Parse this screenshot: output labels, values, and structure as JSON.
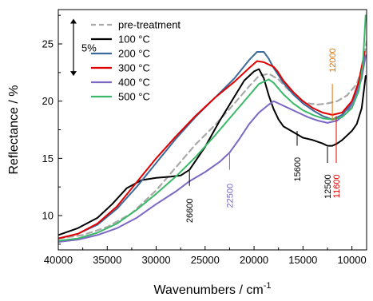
{
  "chart_data": {
    "type": "line",
    "title": "",
    "xlabel": "Wavenumbers / cm",
    "xlabel_sup": "-1",
    "ylabel": "Reflectance / %",
    "xlim": [
      40000,
      8500
    ],
    "ylim": [
      7,
      28
    ],
    "x_reversed": true,
    "x_ticks": [
      {
        "v": 40000,
        "label": "40000"
      },
      {
        "v": 35000,
        "label": "35000"
      },
      {
        "v": 30000,
        "label": "30000"
      },
      {
        "v": 25000,
        "label": "25000"
      },
      {
        "v": 20000,
        "label": "20000"
      },
      {
        "v": 15000,
        "label": "15000"
      },
      {
        "v": 10000,
        "label": "10000"
      }
    ],
    "y_ticks": [
      {
        "v": 10,
        "label": "10"
      },
      {
        "v": 15,
        "label": "15"
      },
      {
        "v": 20,
        "label": "20"
      },
      {
        "v": 25,
        "label": "25"
      }
    ],
    "grid": false,
    "legend_position": "top-left",
    "scale_bar": {
      "label": "5%",
      "y_from": 22.2,
      "y_to": 27.2
    },
    "series": [
      {
        "name": "pre-treatment",
        "color": "#a9a9a9",
        "dashed": true,
        "points": [
          [
            40000,
            8.0
          ],
          [
            37500,
            8.3
          ],
          [
            35000,
            9.0
          ],
          [
            32500,
            10.2
          ],
          [
            30000,
            12.2
          ],
          [
            28000,
            14.2
          ],
          [
            26000,
            16.2
          ],
          [
            24000,
            17.9
          ],
          [
            22000,
            19.8
          ],
          [
            20500,
            21.3
          ],
          [
            19500,
            22.2
          ],
          [
            18500,
            22.4
          ],
          [
            17500,
            21.9
          ],
          [
            16500,
            21.0
          ],
          [
            15500,
            20.2
          ],
          [
            14500,
            19.8
          ],
          [
            13500,
            19.7
          ],
          [
            12500,
            19.8
          ],
          [
            11500,
            20.0
          ],
          [
            10500,
            20.5
          ],
          [
            9500,
            21.5
          ],
          [
            9000,
            22.8
          ],
          [
            8500,
            25.2
          ]
        ]
      },
      {
        "name": "100 °C",
        "color": "#000000",
        "dashed": false,
        "points": [
          [
            40000,
            8.3
          ],
          [
            38000,
            8.9
          ],
          [
            36000,
            9.8
          ],
          [
            34500,
            11.0
          ],
          [
            33000,
            12.4
          ],
          [
            31500,
            13.1
          ],
          [
            30000,
            13.3
          ],
          [
            28500,
            13.4
          ],
          [
            27500,
            13.5
          ],
          [
            26600,
            14.0
          ],
          [
            25000,
            16.0
          ],
          [
            23500,
            18.3
          ],
          [
            22000,
            20.4
          ],
          [
            21000,
            21.8
          ],
          [
            20000,
            22.6
          ],
          [
            19500,
            22.8
          ],
          [
            19000,
            22.0
          ],
          [
            18500,
            20.5
          ],
          [
            18000,
            19.3
          ],
          [
            17500,
            18.4
          ],
          [
            17000,
            17.8
          ],
          [
            16000,
            17.3
          ],
          [
            15000,
            16.8
          ],
          [
            14000,
            16.6
          ],
          [
            13000,
            16.3
          ],
          [
            12500,
            16.1
          ],
          [
            12000,
            16.1
          ],
          [
            11500,
            16.3
          ],
          [
            11000,
            16.6
          ],
          [
            10500,
            17.0
          ],
          [
            10000,
            17.4
          ],
          [
            9500,
            18.0
          ],
          [
            9000,
            19.4
          ],
          [
            8600,
            22.2
          ]
        ]
      },
      {
        "name": "200 °C",
        "color": "#3b6a9b",
        "dashed": false,
        "points": [
          [
            40000,
            8.0
          ],
          [
            38000,
            8.4
          ],
          [
            36000,
            9.2
          ],
          [
            34000,
            10.6
          ],
          [
            32000,
            12.5
          ],
          [
            30000,
            14.6
          ],
          [
            28000,
            16.7
          ],
          [
            26000,
            18.6
          ],
          [
            24000,
            20.3
          ],
          [
            22000,
            22.0
          ],
          [
            20500,
            23.6
          ],
          [
            19700,
            24.3
          ],
          [
            19000,
            24.3
          ],
          [
            18500,
            23.7
          ],
          [
            18000,
            22.9
          ],
          [
            17000,
            21.6
          ],
          [
            16000,
            20.6
          ],
          [
            15000,
            19.8
          ],
          [
            14000,
            19.2
          ],
          [
            13000,
            18.7
          ],
          [
            12000,
            18.4
          ],
          [
            11000,
            18.8
          ],
          [
            10000,
            19.8
          ],
          [
            9300,
            21.4
          ],
          [
            8700,
            24.0
          ]
        ]
      },
      {
        "name": "300 °C",
        "color": "#e00000",
        "dashed": false,
        "points": [
          [
            40000,
            8.0
          ],
          [
            38000,
            8.4
          ],
          [
            36000,
            9.3
          ],
          [
            34000,
            10.8
          ],
          [
            32000,
            12.9
          ],
          [
            30000,
            15.0
          ],
          [
            28000,
            16.9
          ],
          [
            26000,
            18.7
          ],
          [
            24000,
            20.3
          ],
          [
            22000,
            21.7
          ],
          [
            20500,
            22.9
          ],
          [
            19700,
            23.5
          ],
          [
            19000,
            23.4
          ],
          [
            18500,
            23.2
          ],
          [
            18000,
            23.0
          ],
          [
            17600,
            22.6
          ],
          [
            17000,
            21.8
          ],
          [
            16000,
            20.8
          ],
          [
            15000,
            20.0
          ],
          [
            14000,
            19.4
          ],
          [
            13000,
            19.0
          ],
          [
            12000,
            18.8
          ],
          [
            11000,
            19.0
          ],
          [
            10000,
            20.0
          ],
          [
            9300,
            21.7
          ],
          [
            8700,
            24.3
          ]
        ]
      },
      {
        "name": "400 °C",
        "color": "#7b68c4",
        "dashed": false,
        "points": [
          [
            40000,
            7.7
          ],
          [
            38000,
            7.9
          ],
          [
            36000,
            8.3
          ],
          [
            34000,
            8.9
          ],
          [
            32000,
            9.8
          ],
          [
            30000,
            11.0
          ],
          [
            28000,
            12.1
          ],
          [
            26600,
            13.0
          ],
          [
            25000,
            13.8
          ],
          [
            23500,
            14.7
          ],
          [
            22500,
            15.5
          ],
          [
            21500,
            16.7
          ],
          [
            20500,
            18.0
          ],
          [
            19500,
            19.0
          ],
          [
            18500,
            19.7
          ],
          [
            18000,
            20.0
          ],
          [
            17500,
            19.8
          ],
          [
            16500,
            19.4
          ],
          [
            15500,
            19.0
          ],
          [
            14500,
            18.6
          ],
          [
            13500,
            18.3
          ],
          [
            12500,
            18.1
          ],
          [
            11500,
            18.3
          ],
          [
            10500,
            19.0
          ],
          [
            9700,
            20.2
          ],
          [
            9000,
            22.0
          ],
          [
            8600,
            24.0
          ]
        ]
      },
      {
        "name": "500 °C",
        "color": "#3cb86a",
        "dashed": false,
        "points": [
          [
            40000,
            7.8
          ],
          [
            38000,
            8.0
          ],
          [
            36000,
            8.5
          ],
          [
            34000,
            9.3
          ],
          [
            32000,
            10.5
          ],
          [
            30000,
            11.9
          ],
          [
            28000,
            13.4
          ],
          [
            26000,
            15.1
          ],
          [
            24000,
            17.0
          ],
          [
            22000,
            19.0
          ],
          [
            20500,
            20.5
          ],
          [
            19500,
            21.5
          ],
          [
            18500,
            21.9
          ],
          [
            18000,
            21.6
          ],
          [
            17000,
            20.6
          ],
          [
            16000,
            19.8
          ],
          [
            15000,
            19.2
          ],
          [
            14000,
            18.8
          ],
          [
            13000,
            18.5
          ],
          [
            12000,
            18.4
          ],
          [
            11000,
            18.6
          ],
          [
            10000,
            19.4
          ],
          [
            9300,
            20.9
          ],
          [
            8900,
            23.0
          ],
          [
            8600,
            27.5
          ]
        ]
      }
    ],
    "annotations": [
      {
        "label": "26600",
        "x": 26600,
        "color": "#000000",
        "line_from": 13.9,
        "line_to": 12.6,
        "text_y": 11.5,
        "text_side": "below"
      },
      {
        "label": "22500",
        "x": 22500,
        "color": "#7b68c4",
        "line_from": 15.4,
        "line_to": 14.0,
        "text_y": 12.8,
        "text_side": "below"
      },
      {
        "label": "15600",
        "x": 15600,
        "color": "#000000",
        "line_from": 17.4,
        "line_to": 16.1,
        "text_y": 15.1,
        "text_side": "below"
      },
      {
        "label": "12500",
        "x": 12500,
        "color": "#000000",
        "line_from": 16.0,
        "line_to": 14.6,
        "text_y": 13.6,
        "text_side": "below"
      },
      {
        "label": "11600",
        "x": 11600,
        "color": "#e00000",
        "line_from": 18.7,
        "line_to": 14.6,
        "text_y": 13.6,
        "text_side": "below"
      },
      {
        "label": "12000",
        "x": 12000,
        "color": "#e07000",
        "line_from": 18.3,
        "line_to": 21.5,
        "text_y": 22.5,
        "text_side": "above"
      }
    ]
  }
}
